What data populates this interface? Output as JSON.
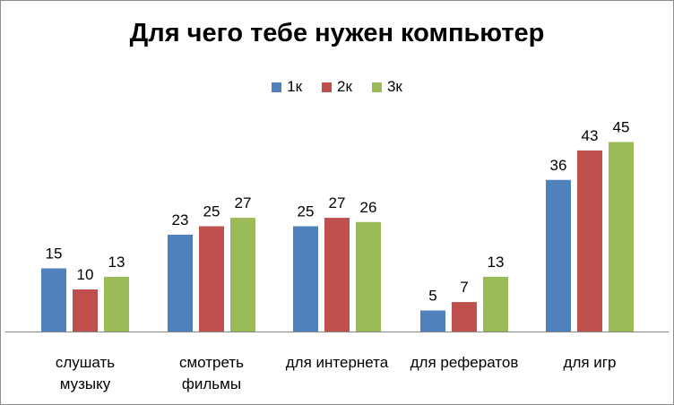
{
  "chart_data": {
    "type": "bar",
    "title": "Для чего тебе нужен компьютер",
    "categories": [
      [
        "слушать",
        "музыку"
      ],
      [
        "смотреть",
        "фильмы"
      ],
      [
        "для интернета"
      ],
      [
        "для рефератов"
      ],
      [
        "для игр"
      ]
    ],
    "series": [
      {
        "name": "1к",
        "color": "#4f81bd",
        "values": [
          15,
          23,
          25,
          5,
          36
        ]
      },
      {
        "name": "2к",
        "color": "#c0504d",
        "values": [
          10,
          25,
          27,
          7,
          43
        ]
      },
      {
        "name": "3к",
        "color": "#9bbb59",
        "values": [
          13,
          27,
          26,
          13,
          45
        ]
      }
    ],
    "ylim": [
      0,
      50
    ],
    "legend_position": "top",
    "grid": false
  }
}
